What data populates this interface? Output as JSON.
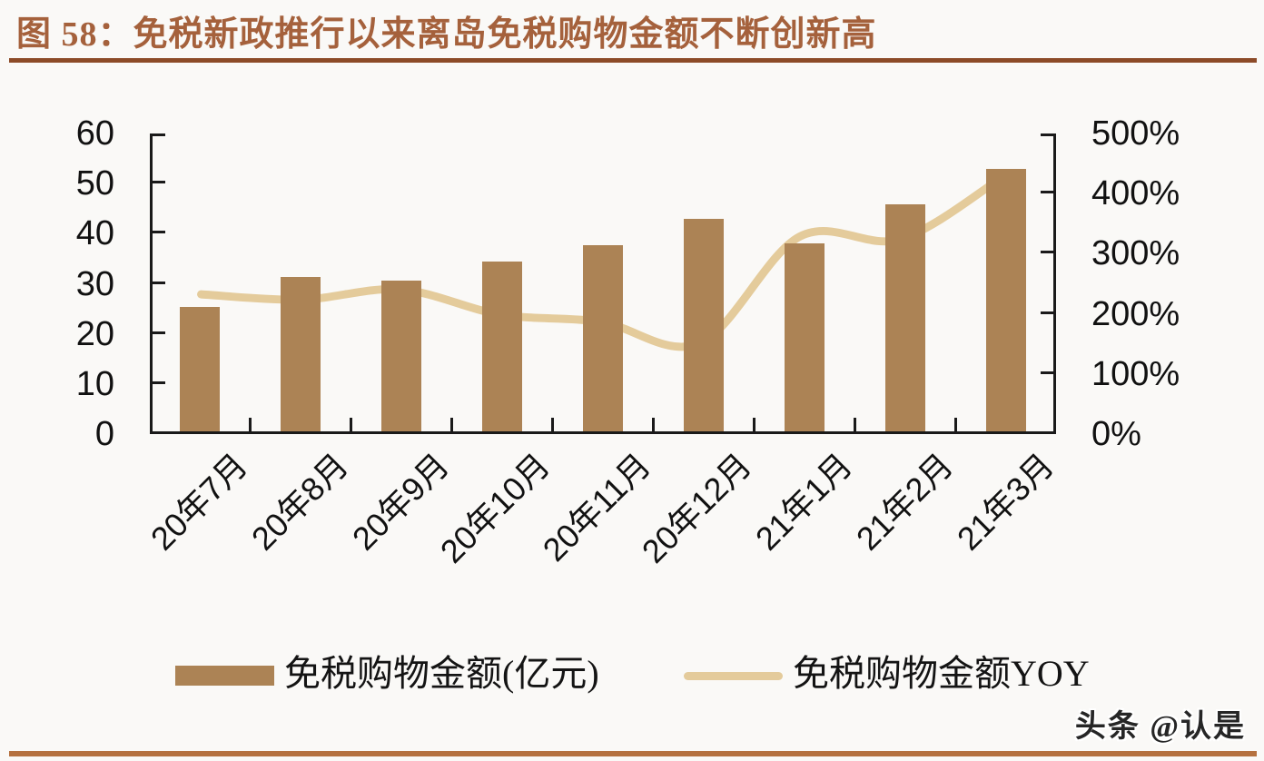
{
  "title": "图 58：免税新政推行以来离岛免税购物金额不断创新高",
  "watermark": "头条 @认是",
  "legend": {
    "bar_label": "免税购物金额(亿元)",
    "line_label": "免税购物金额YOY"
  },
  "colors": {
    "background": "#FAF9F7",
    "title": "#A5613C",
    "title_rule": "#8C4B28",
    "bottom_rule": "#B5713F",
    "bar": "#AC8355",
    "line": "#E4CB9B",
    "axis": "#1A1A1A"
  },
  "chart_data": {
    "type": "bar",
    "subtype": "bar-with-line-overlay",
    "categories": [
      "20年7月",
      "20年8月",
      "20年9月",
      "20年10月",
      "20年11月",
      "20年12月",
      "21年1月",
      "21年2月",
      "21年3月"
    ],
    "series": [
      {
        "name": "免税购物金额(亿元)",
        "type": "bar",
        "axis": "left",
        "values": [
          24.8,
          30.8,
          30.1,
          33.9,
          37.1,
          42.4,
          37.6,
          45.4,
          52.4
        ]
      },
      {
        "name": "免税购物金额YOY",
        "type": "line",
        "axis": "right",
        "values": [
          230,
          221,
          238,
          196,
          184,
          148,
          327,
          322,
          423
        ]
      }
    ],
    "left_axis": {
      "label": "",
      "min": 0,
      "max": 60,
      "tick_step": 10,
      "tick_labels": [
        "0",
        "10",
        "20",
        "30",
        "40",
        "50",
        "60"
      ]
    },
    "right_axis": {
      "label": "",
      "min": 0,
      "max": 500,
      "tick_step": 100,
      "tick_labels": [
        "0%",
        "100%",
        "200%",
        "300%",
        "400%",
        "500%"
      ]
    },
    "grid": false,
    "legend_position": "bottom",
    "x_tick_rotation": 45
  }
}
